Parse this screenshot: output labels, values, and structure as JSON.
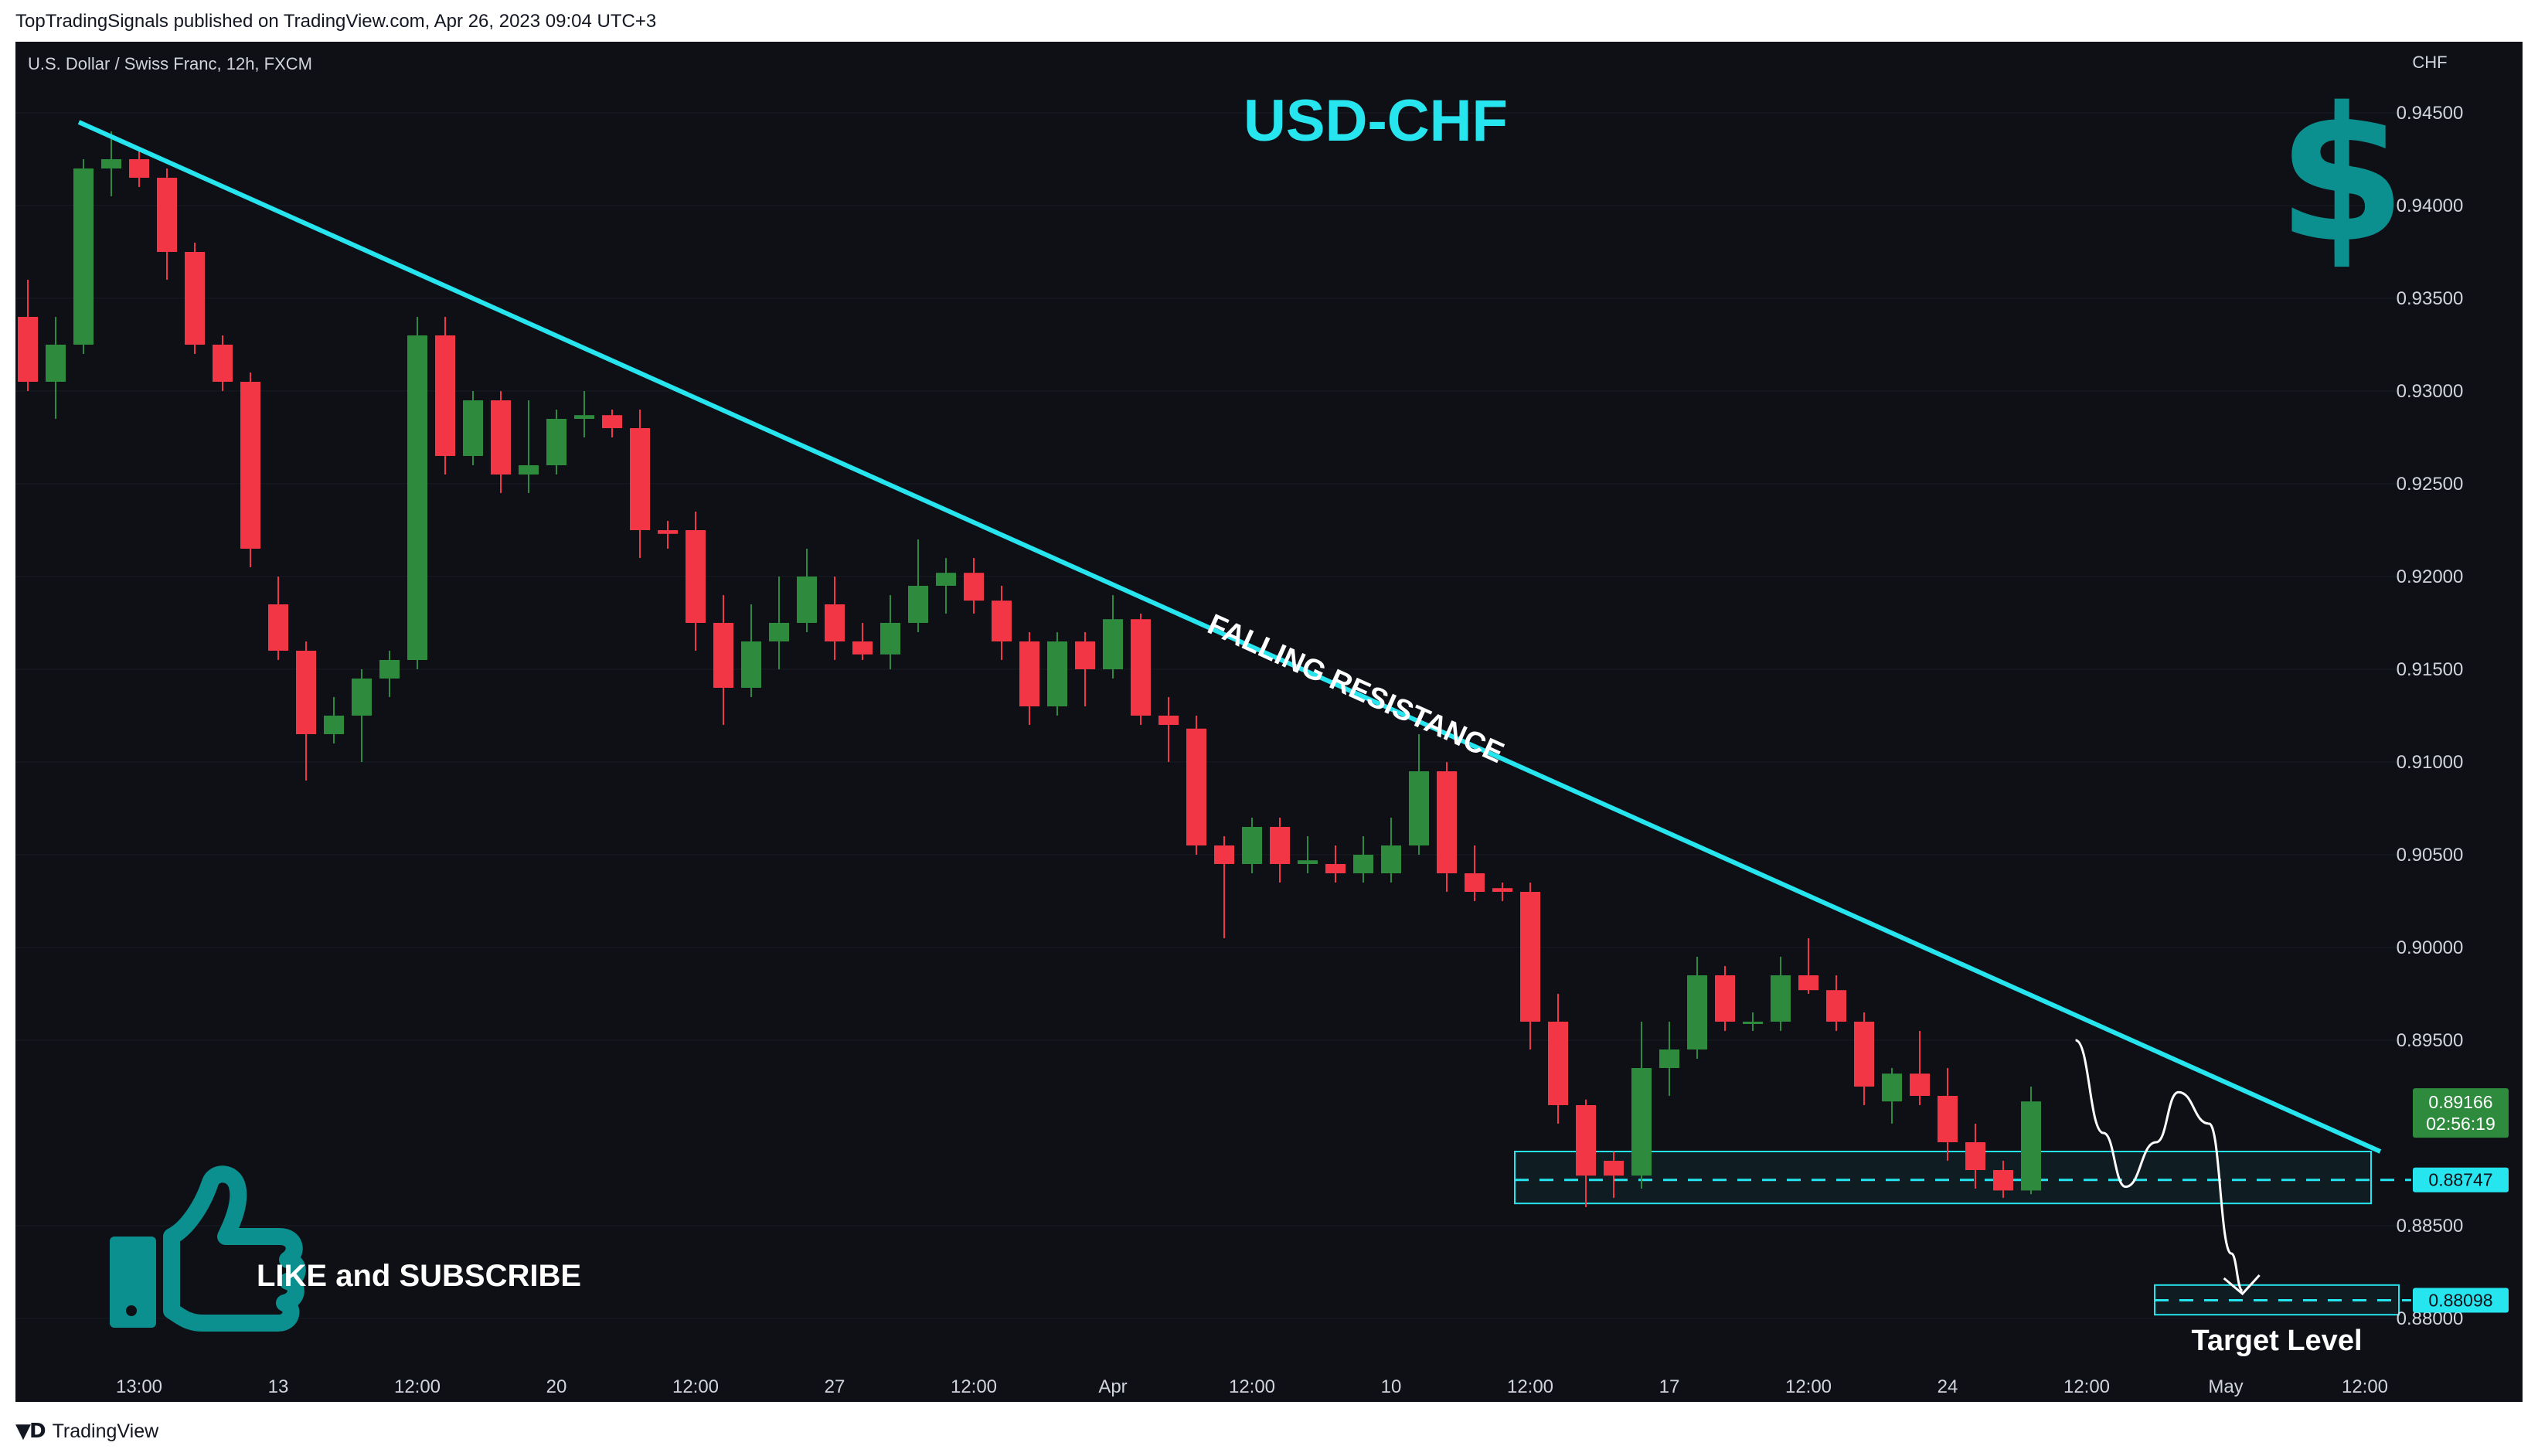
{
  "publisher_line": "TopTradingSignals published on TradingView.com, Apr 26, 2023 09:04 UTC+3",
  "footer": {
    "brand": "TradingView"
  },
  "colors": {
    "background": "#0e1016",
    "up_candle": "#2e8b3e",
    "down_candle": "#f23645",
    "trendline": "#26e5ee",
    "title": "#26e5ee",
    "dollar_icon": "#0b8f8f",
    "annotation": "#ffffff",
    "last_price_badge": "#2e8b3e"
  },
  "chart_data": {
    "type": "candlestick",
    "symbol_line": "U.S. Dollar / Swiss Franc, 12h, FXCM",
    "title": "USD-CHF",
    "currency_label": "CHF",
    "ylim": [
      0.8775,
      0.9475
    ],
    "y_ticks": [
      "0.94500",
      "0.94000",
      "0.93500",
      "0.93000",
      "0.92500",
      "0.92000",
      "0.91500",
      "0.91000",
      "0.90500",
      "0.90000",
      "0.89500",
      "0.88500",
      "0.88000"
    ],
    "x_ticks": [
      {
        "label": "13:00",
        "i": 4
      },
      {
        "label": "13",
        "i": 9
      },
      {
        "label": "12:00",
        "i": 14
      },
      {
        "label": "20",
        "i": 19
      },
      {
        "label": "12:00",
        "i": 24
      },
      {
        "label": "27",
        "i": 29
      },
      {
        "label": "12:00",
        "i": 34
      },
      {
        "label": "Apr",
        "i": 39
      },
      {
        "label": "12:00",
        "i": 44
      },
      {
        "label": "10",
        "i": 49
      },
      {
        "label": "12:00",
        "i": 54
      },
      {
        "label": "17",
        "i": 59
      },
      {
        "label": "12:00",
        "i": 64
      },
      {
        "label": "24",
        "i": 69
      },
      {
        "label": "12:00",
        "i": 74
      },
      {
        "label": "May",
        "i": 79
      },
      {
        "label": "12:00",
        "i": 84
      }
    ],
    "candles": [
      [
        0.934,
        0.936,
        0.93,
        0.9305
      ],
      [
        0.9305,
        0.934,
        0.9285,
        0.9325
      ],
      [
        0.9325,
        0.9425,
        0.932,
        0.942
      ],
      [
        0.942,
        0.944,
        0.9405,
        0.9425
      ],
      [
        0.9425,
        0.943,
        0.941,
        0.9415
      ],
      [
        0.9415,
        0.942,
        0.936,
        0.9375
      ],
      [
        0.9375,
        0.938,
        0.932,
        0.9325
      ],
      [
        0.9325,
        0.933,
        0.93,
        0.9305
      ],
      [
        0.9305,
        0.931,
        0.9205,
        0.9215
      ],
      [
        0.9185,
        0.92,
        0.9155,
        0.916
      ],
      [
        0.916,
        0.9165,
        0.909,
        0.9115
      ],
      [
        0.9115,
        0.9135,
        0.911,
        0.9125
      ],
      [
        0.9125,
        0.915,
        0.91,
        0.9145
      ],
      [
        0.9145,
        0.916,
        0.9135,
        0.9155
      ],
      [
        0.9155,
        0.934,
        0.915,
        0.933
      ],
      [
        0.933,
        0.934,
        0.9255,
        0.9265
      ],
      [
        0.9265,
        0.93,
        0.926,
        0.9295
      ],
      [
        0.9295,
        0.93,
        0.9245,
        0.9255
      ],
      [
        0.9255,
        0.9295,
        0.9245,
        0.926
      ],
      [
        0.926,
        0.929,
        0.9255,
        0.9285
      ],
      [
        0.9285,
        0.93,
        0.9275,
        0.9287
      ],
      [
        0.9287,
        0.929,
        0.9275,
        0.928
      ],
      [
        0.928,
        0.929,
        0.921,
        0.9225
      ],
      [
        0.9225,
        0.923,
        0.9215,
        0.9223
      ],
      [
        0.9225,
        0.9235,
        0.916,
        0.9175
      ],
      [
        0.9175,
        0.919,
        0.912,
        0.914
      ],
      [
        0.914,
        0.9185,
        0.9135,
        0.9165
      ],
      [
        0.9165,
        0.92,
        0.915,
        0.9175
      ],
      [
        0.9175,
        0.9215,
        0.917,
        0.92
      ],
      [
        0.9185,
        0.92,
        0.9155,
        0.9165
      ],
      [
        0.9165,
        0.9175,
        0.9155,
        0.9158
      ],
      [
        0.9158,
        0.919,
        0.915,
        0.9175
      ],
      [
        0.9175,
        0.922,
        0.917,
        0.9195
      ],
      [
        0.9195,
        0.921,
        0.918,
        0.9202
      ],
      [
        0.9202,
        0.921,
        0.918,
        0.9187
      ],
      [
        0.9187,
        0.9195,
        0.9155,
        0.9165
      ],
      [
        0.9165,
        0.917,
        0.912,
        0.913
      ],
      [
        0.913,
        0.917,
        0.9125,
        0.9165
      ],
      [
        0.9165,
        0.917,
        0.913,
        0.915
      ],
      [
        0.915,
        0.919,
        0.9145,
        0.9177
      ],
      [
        0.9177,
        0.918,
        0.912,
        0.9125
      ],
      [
        0.9125,
        0.9135,
        0.91,
        0.912
      ],
      [
        0.9118,
        0.9125,
        0.905,
        0.9055
      ],
      [
        0.9055,
        0.906,
        0.9005,
        0.9045
      ],
      [
        0.9045,
        0.907,
        0.904,
        0.9065
      ],
      [
        0.9065,
        0.907,
        0.9035,
        0.9045
      ],
      [
        0.9045,
        0.906,
        0.904,
        0.9047
      ],
      [
        0.9045,
        0.9055,
        0.9035,
        0.904
      ],
      [
        0.904,
        0.906,
        0.9035,
        0.905
      ],
      [
        0.904,
        0.907,
        0.9035,
        0.9055
      ],
      [
        0.9055,
        0.9115,
        0.905,
        0.9095
      ],
      [
        0.9095,
        0.91,
        0.903,
        0.904
      ],
      [
        0.904,
        0.9055,
        0.9025,
        0.903
      ],
      [
        0.9032,
        0.9035,
        0.9025,
        0.903
      ],
      [
        0.903,
        0.9035,
        0.8945,
        0.896
      ],
      [
        0.896,
        0.8975,
        0.8905,
        0.8915
      ],
      [
        0.8915,
        0.8918,
        0.886,
        0.8877
      ],
      [
        0.8885,
        0.889,
        0.8865,
        0.8877
      ],
      [
        0.8877,
        0.896,
        0.887,
        0.8935
      ],
      [
        0.8935,
        0.896,
        0.892,
        0.8945
      ],
      [
        0.8945,
        0.8995,
        0.894,
        0.8985
      ],
      [
        0.8985,
        0.899,
        0.8955,
        0.896
      ],
      [
        0.896,
        0.8965,
        0.8955,
        0.896
      ],
      [
        0.896,
        0.8995,
        0.8955,
        0.8985
      ],
      [
        0.8985,
        0.9005,
        0.8975,
        0.8977
      ],
      [
        0.8977,
        0.8985,
        0.8955,
        0.896
      ],
      [
        0.896,
        0.8965,
        0.8915,
        0.8925
      ],
      [
        0.8917,
        0.8935,
        0.8905,
        0.8932
      ],
      [
        0.8932,
        0.8955,
        0.8915,
        0.892
      ],
      [
        0.892,
        0.8935,
        0.8885,
        0.8895
      ],
      [
        0.8895,
        0.8905,
        0.887,
        0.888
      ],
      [
        0.888,
        0.8885,
        0.8865,
        0.8869
      ],
      [
        0.8869,
        0.8925,
        0.8867,
        0.8917
      ]
    ],
    "trendline": {
      "from": {
        "i": 2,
        "price": 0.9445
      },
      "to": {
        "i": 84,
        "price": 0.889
      }
    },
    "trendline_label": "FALLING RESISTANCE",
    "support_zone": {
      "from_i": 54,
      "to_i": 84,
      "low": 0.8862,
      "high": 0.889,
      "level": 0.88747
    },
    "target_zone": {
      "from_i": 77,
      "to_i": 85,
      "low": 0.8802,
      "high": 0.8818,
      "level": 0.88098
    },
    "target_label": "Target Level",
    "projection_path": [
      {
        "i": 73.6,
        "price": 0.895
      },
      {
        "i": 74.6,
        "price": 0.89
      },
      {
        "i": 75.4,
        "price": 0.8871
      },
      {
        "i": 76.5,
        "price": 0.8895
      },
      {
        "i": 77.3,
        "price": 0.8922
      },
      {
        "i": 78.4,
        "price": 0.8905
      },
      {
        "i": 79.2,
        "price": 0.8835
      },
      {
        "i": 79.6,
        "price": 0.8815
      }
    ],
    "price_badges": [
      {
        "price": 0.89166,
        "text": "0.89166",
        "subtext": "02:56:19",
        "style": "last"
      },
      {
        "price": 0.88747,
        "text": "0.88747",
        "style": "level"
      },
      {
        "price": 0.88098,
        "text": "0.88098",
        "style": "level"
      }
    ],
    "promo_text": "LIKE and SUBSCRIBE",
    "dollar_icon": "dollar-sign-icon",
    "like_icon": "thumbs-up-icon"
  }
}
